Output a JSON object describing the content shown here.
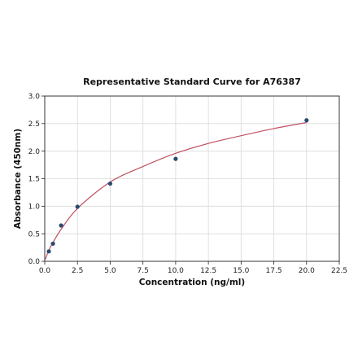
{
  "chart_data": {
    "type": "scatter",
    "title": "Representative Standard Curve for A76387",
    "xlabel": "Concentration (ng/ml)",
    "ylabel": "Absorbance (450nm)",
    "xlim": [
      0,
      22.5
    ],
    "ylim": [
      0,
      3.0
    ],
    "xticks": [
      "0.0",
      "2.5",
      "5.0",
      "7.5",
      "10.0",
      "12.5",
      "15.0",
      "17.5",
      "20.0",
      "22.5"
    ],
    "yticks": [
      "0.0",
      "0.5",
      "1.0",
      "1.5",
      "2.0",
      "2.5",
      "3.0"
    ],
    "grid": true,
    "series": [
      {
        "type": "scatter",
        "color": "#2b4a6f",
        "x": [
          0.313,
          0.625,
          1.25,
          2.5,
          5.0,
          10.0,
          20.0
        ],
        "y": [
          0.18,
          0.32,
          0.65,
          0.99,
          1.41,
          1.86,
          2.56
        ]
      },
      {
        "type": "line",
        "color": "#c05060",
        "curve": "fit",
        "x": [
          0.05,
          0.313,
          0.625,
          1.25,
          2.5,
          5.0,
          7.5,
          10.0,
          12.5,
          15.0,
          17.5,
          20.0
        ],
        "y": [
          0.04,
          0.2,
          0.34,
          0.58,
          0.96,
          1.44,
          1.72,
          1.96,
          2.14,
          2.28,
          2.41,
          2.52
        ]
      }
    ]
  }
}
